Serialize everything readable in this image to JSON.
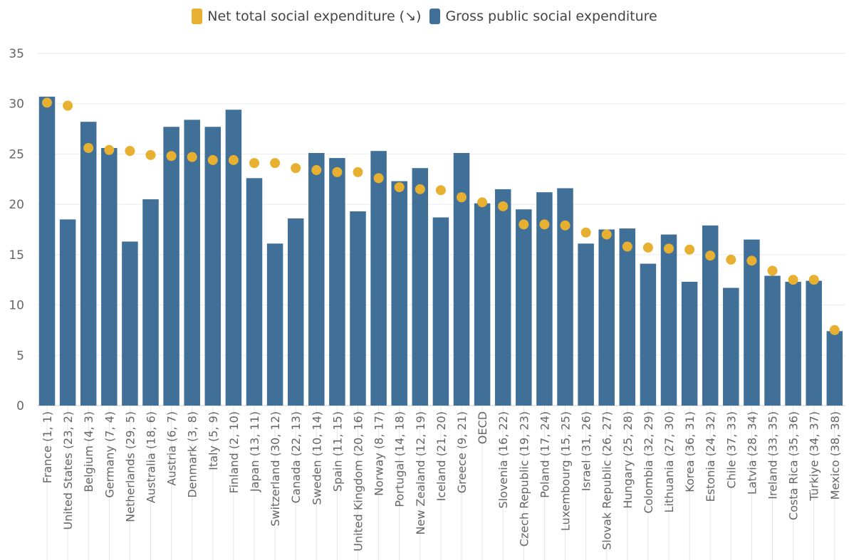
{
  "chart_data": {
    "type": "bar",
    "title": "",
    "xlabel": "",
    "ylabel": "",
    "ylim": [
      0,
      35
    ],
    "yticks": [
      0,
      5,
      10,
      15,
      20,
      25,
      30,
      35
    ],
    "grid": true,
    "legend_position": "top-center",
    "legend": [
      {
        "label": "Net total social expenditure (↘)",
        "color": "#E8B030",
        "marker": "dot"
      },
      {
        "label": "Gross public social expenditure",
        "color": "#406F98",
        "marker": "bar"
      }
    ],
    "categories": [
      "France (1, 1)",
      "United States (23, 2)",
      "Belgium (4, 3)",
      "Germany (7, 4)",
      "Netherlands (29, 5)",
      "Australia (18, 6)",
      "Austria (6, 7)",
      "Denmark (3, 8)",
      "Italy (5, 9)",
      "Finland (2, 10)",
      "Japan (13, 11)",
      "Switzerland (30, 12)",
      "Canada (22, 13)",
      "Sweden (10, 14)",
      "Spain (11, 15)",
      "United Kingdom (20, 16)",
      "Norway (8, 17)",
      "Portugal (14, 18)",
      "New Zealand (12, 19)",
      "Iceland (21, 20)",
      "Greece (9, 21)",
      "OECD",
      "Slovenia (16, 22)",
      "Czech Republic (19, 23)",
      "Poland (17, 24)",
      "Luxembourg (15, 25)",
      "Israel (31, 26)",
      "Slovak Republic (26, 27)",
      "Hungary (25, 28)",
      "Colombia (32, 29)",
      "Lithuania (27, 30)",
      "Korea (36, 31)",
      "Estonia (24, 32)",
      "Chile (37, 33)",
      "Latvia (28, 34)",
      "Ireland (33, 35)",
      "Costa Rica (35, 36)",
      "Türkiye (34, 37)",
      "Mexico (38, 38)"
    ],
    "series": [
      {
        "name": "Gross public social expenditure",
        "type": "bar",
        "color": "#406F98",
        "values": [
          30.7,
          18.5,
          28.2,
          25.6,
          16.3,
          20.5,
          27.7,
          28.4,
          27.7,
          29.4,
          22.6,
          16.1,
          18.6,
          25.1,
          24.6,
          19.3,
          25.3,
          22.3,
          23.6,
          18.7,
          25.1,
          20.1,
          21.5,
          19.5,
          21.2,
          21.6,
          16.1,
          17.5,
          17.6,
          14.1,
          17.0,
          12.3,
          17.9,
          11.7,
          16.5,
          12.9,
          12.3,
          12.4,
          7.4
        ]
      },
      {
        "name": "Net total social expenditure (↘)",
        "type": "scatter",
        "color": "#E8B030",
        "values": [
          30.1,
          29.8,
          25.6,
          25.4,
          25.3,
          24.9,
          24.8,
          24.7,
          24.4,
          24.4,
          24.1,
          24.1,
          23.6,
          23.4,
          23.2,
          23.2,
          22.6,
          21.7,
          21.5,
          21.4,
          20.7,
          20.2,
          19.8,
          18.0,
          18.0,
          17.9,
          17.2,
          17.0,
          15.8,
          15.7,
          15.6,
          15.5,
          14.9,
          14.5,
          14.4,
          13.4,
          12.5,
          12.5,
          7.5
        ]
      }
    ]
  }
}
